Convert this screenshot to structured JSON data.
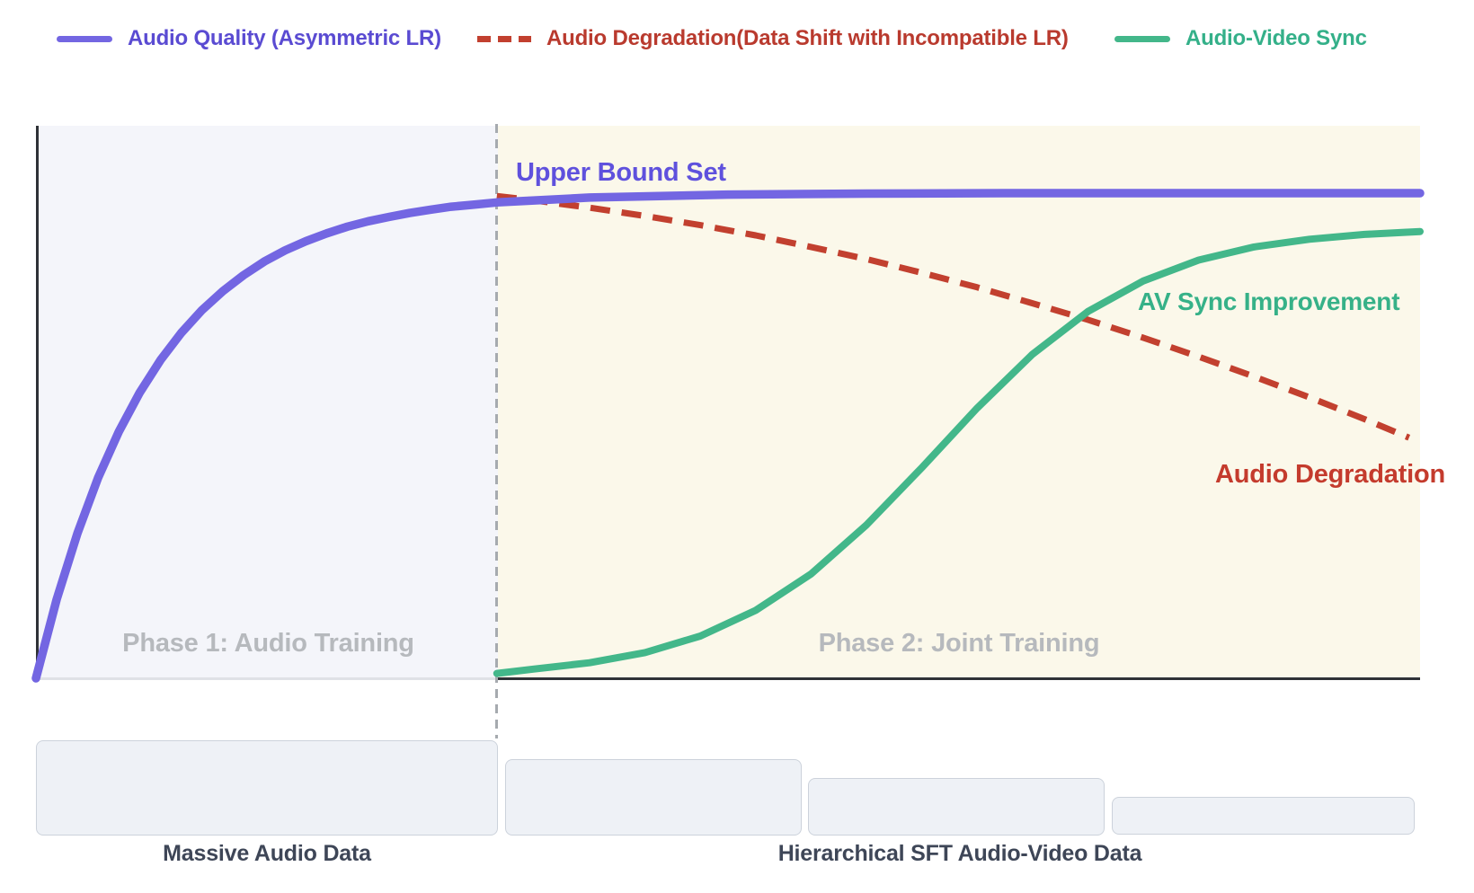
{
  "page": {
    "background": "#ffffff"
  },
  "legend": {
    "items": [
      {
        "id": "audio-quality",
        "label": "Audio Quality (Asymmetric LR)",
        "text_color": "#5a4bd2",
        "line_color": "#7366e2",
        "style": "solid"
      },
      {
        "id": "audio-degradation",
        "label": "Audio Degradation(Data Shift with Incompatible LR)",
        "text_color": "#b93a2e",
        "line_color": "#c2402f",
        "style": "dashed"
      },
      {
        "id": "audio-video-sync",
        "label": "Audio-Video Sync",
        "text_color": "#34b089",
        "line_color": "#43b78a",
        "style": "solid"
      }
    ]
  },
  "plot": {
    "phase1_label": "Phase 1: Audio Training",
    "phase2_label": "Phase 2: Joint Training",
    "phase1_bg": "#f3f4fa",
    "phase2_bg": "#fbf8ea",
    "axis_color": "#2f3237",
    "divider_color": "#a6aaaf",
    "annotations": {
      "upper_bound": {
        "text": "Upper Bound Set",
        "color": "#5f51dd"
      },
      "av_sync": {
        "text": "AV Sync Improvement",
        "color": "#36b188"
      },
      "audio_degradation": {
        "text": "Audio Degradation",
        "color": "#c43b2d"
      }
    }
  },
  "data_blocks": {
    "massive_audio_label": "Massive Audio Data",
    "hierarchical_label": "Hierarchical SFT Audio-Video Data",
    "box_bg": "#eef1f6",
    "box_border": "#ccd2db"
  },
  "chart_data": {
    "type": "line",
    "title": "",
    "xlabel": "",
    "ylabel": "",
    "grid": false,
    "legend_position": "top",
    "x_axis": {
      "range": [
        0,
        100
      ],
      "unit": "training progress",
      "phase_boundary": 33.3
    },
    "y_axis": {
      "range": [
        0,
        100
      ],
      "unit": "relative level (conceptual, no ticks shown)"
    },
    "phases": [
      {
        "name": "Phase 1: Audio Training",
        "x_start": 0,
        "x_end": 33.3,
        "data": "Massive Audio Data"
      },
      {
        "name": "Phase 2: Joint Training",
        "x_start": 33.3,
        "x_end": 100,
        "data": "Hierarchical SFT Audio-Video Data"
      }
    ],
    "series": [
      {
        "id": "audio-degradation",
        "name": "Audio Degradation(Data Shift with Incompatible LR)",
        "color": "#c2402f",
        "dash": true,
        "points": [
          [
            33.3,
            99.4
          ],
          [
            36,
            98.5
          ],
          [
            40,
            97.0
          ],
          [
            44,
            95.3
          ],
          [
            48,
            93.4
          ],
          [
            52,
            91.3
          ],
          [
            56,
            88.9
          ],
          [
            60,
            86.4
          ],
          [
            64,
            83.6
          ],
          [
            68,
            80.6
          ],
          [
            72,
            77.3
          ],
          [
            76,
            73.9
          ],
          [
            80,
            70.2
          ],
          [
            84,
            66.3
          ],
          [
            88,
            62.2
          ],
          [
            92,
            57.9
          ],
          [
            96,
            53.4
          ],
          [
            99.2,
            49.6
          ]
        ]
      },
      {
        "id": "audio-video-sync",
        "name": "Audio-Video Sync",
        "color": "#43b78a",
        "dash": false,
        "points": [
          [
            33.3,
            1.0
          ],
          [
            36,
            1.9
          ],
          [
            40,
            3.2
          ],
          [
            44,
            5.3
          ],
          [
            48,
            8.7
          ],
          [
            52,
            14.0
          ],
          [
            56,
            21.5
          ],
          [
            60,
            31.6
          ],
          [
            64,
            43.4
          ],
          [
            68,
            55.7
          ],
          [
            72,
            66.8
          ],
          [
            76,
            75.6
          ],
          [
            80,
            81.9
          ],
          [
            84,
            86.2
          ],
          [
            88,
            88.9
          ],
          [
            92,
            90.5
          ],
          [
            96,
            91.5
          ],
          [
            100,
            92.1
          ]
        ]
      },
      {
        "id": "audio-quality",
        "name": "Audio Quality (Asymmetric LR)",
        "color": "#7366e2",
        "dash": false,
        "points": [
          [
            0,
            0
          ],
          [
            1.5,
            16.3
          ],
          [
            3,
            29.9
          ],
          [
            4.5,
            41.4
          ],
          [
            6,
            50.9
          ],
          [
            7.5,
            58.9
          ],
          [
            9,
            65.6
          ],
          [
            10.5,
            71.2
          ],
          [
            12,
            75.9
          ],
          [
            13.5,
            79.8
          ],
          [
            15,
            83.1
          ],
          [
            16.5,
            85.9
          ],
          [
            18,
            88.2
          ],
          [
            19.5,
            90.1
          ],
          [
            21,
            91.7
          ],
          [
            22.5,
            93.1
          ],
          [
            24,
            94.2
          ],
          [
            25.5,
            95.1
          ],
          [
            27,
            95.9
          ],
          [
            28.5,
            96.6
          ],
          [
            30,
            97.2
          ],
          [
            31.5,
            97.6
          ],
          [
            33.3,
            98.1
          ],
          [
            40,
            99.1
          ],
          [
            50,
            99.7
          ],
          [
            60,
            99.9
          ],
          [
            70,
            100
          ],
          [
            100,
            100
          ]
        ]
      }
    ],
    "annotations": [
      {
        "text": "Upper Bound Set",
        "x": 36,
        "y": 104,
        "color": "#5f51dd"
      },
      {
        "text": "AV Sync Improvement",
        "x": 82,
        "y": 77,
        "color": "#36b188"
      },
      {
        "text": "Audio Degradation",
        "x": 88,
        "y": 41,
        "color": "#c43b2d"
      }
    ]
  }
}
